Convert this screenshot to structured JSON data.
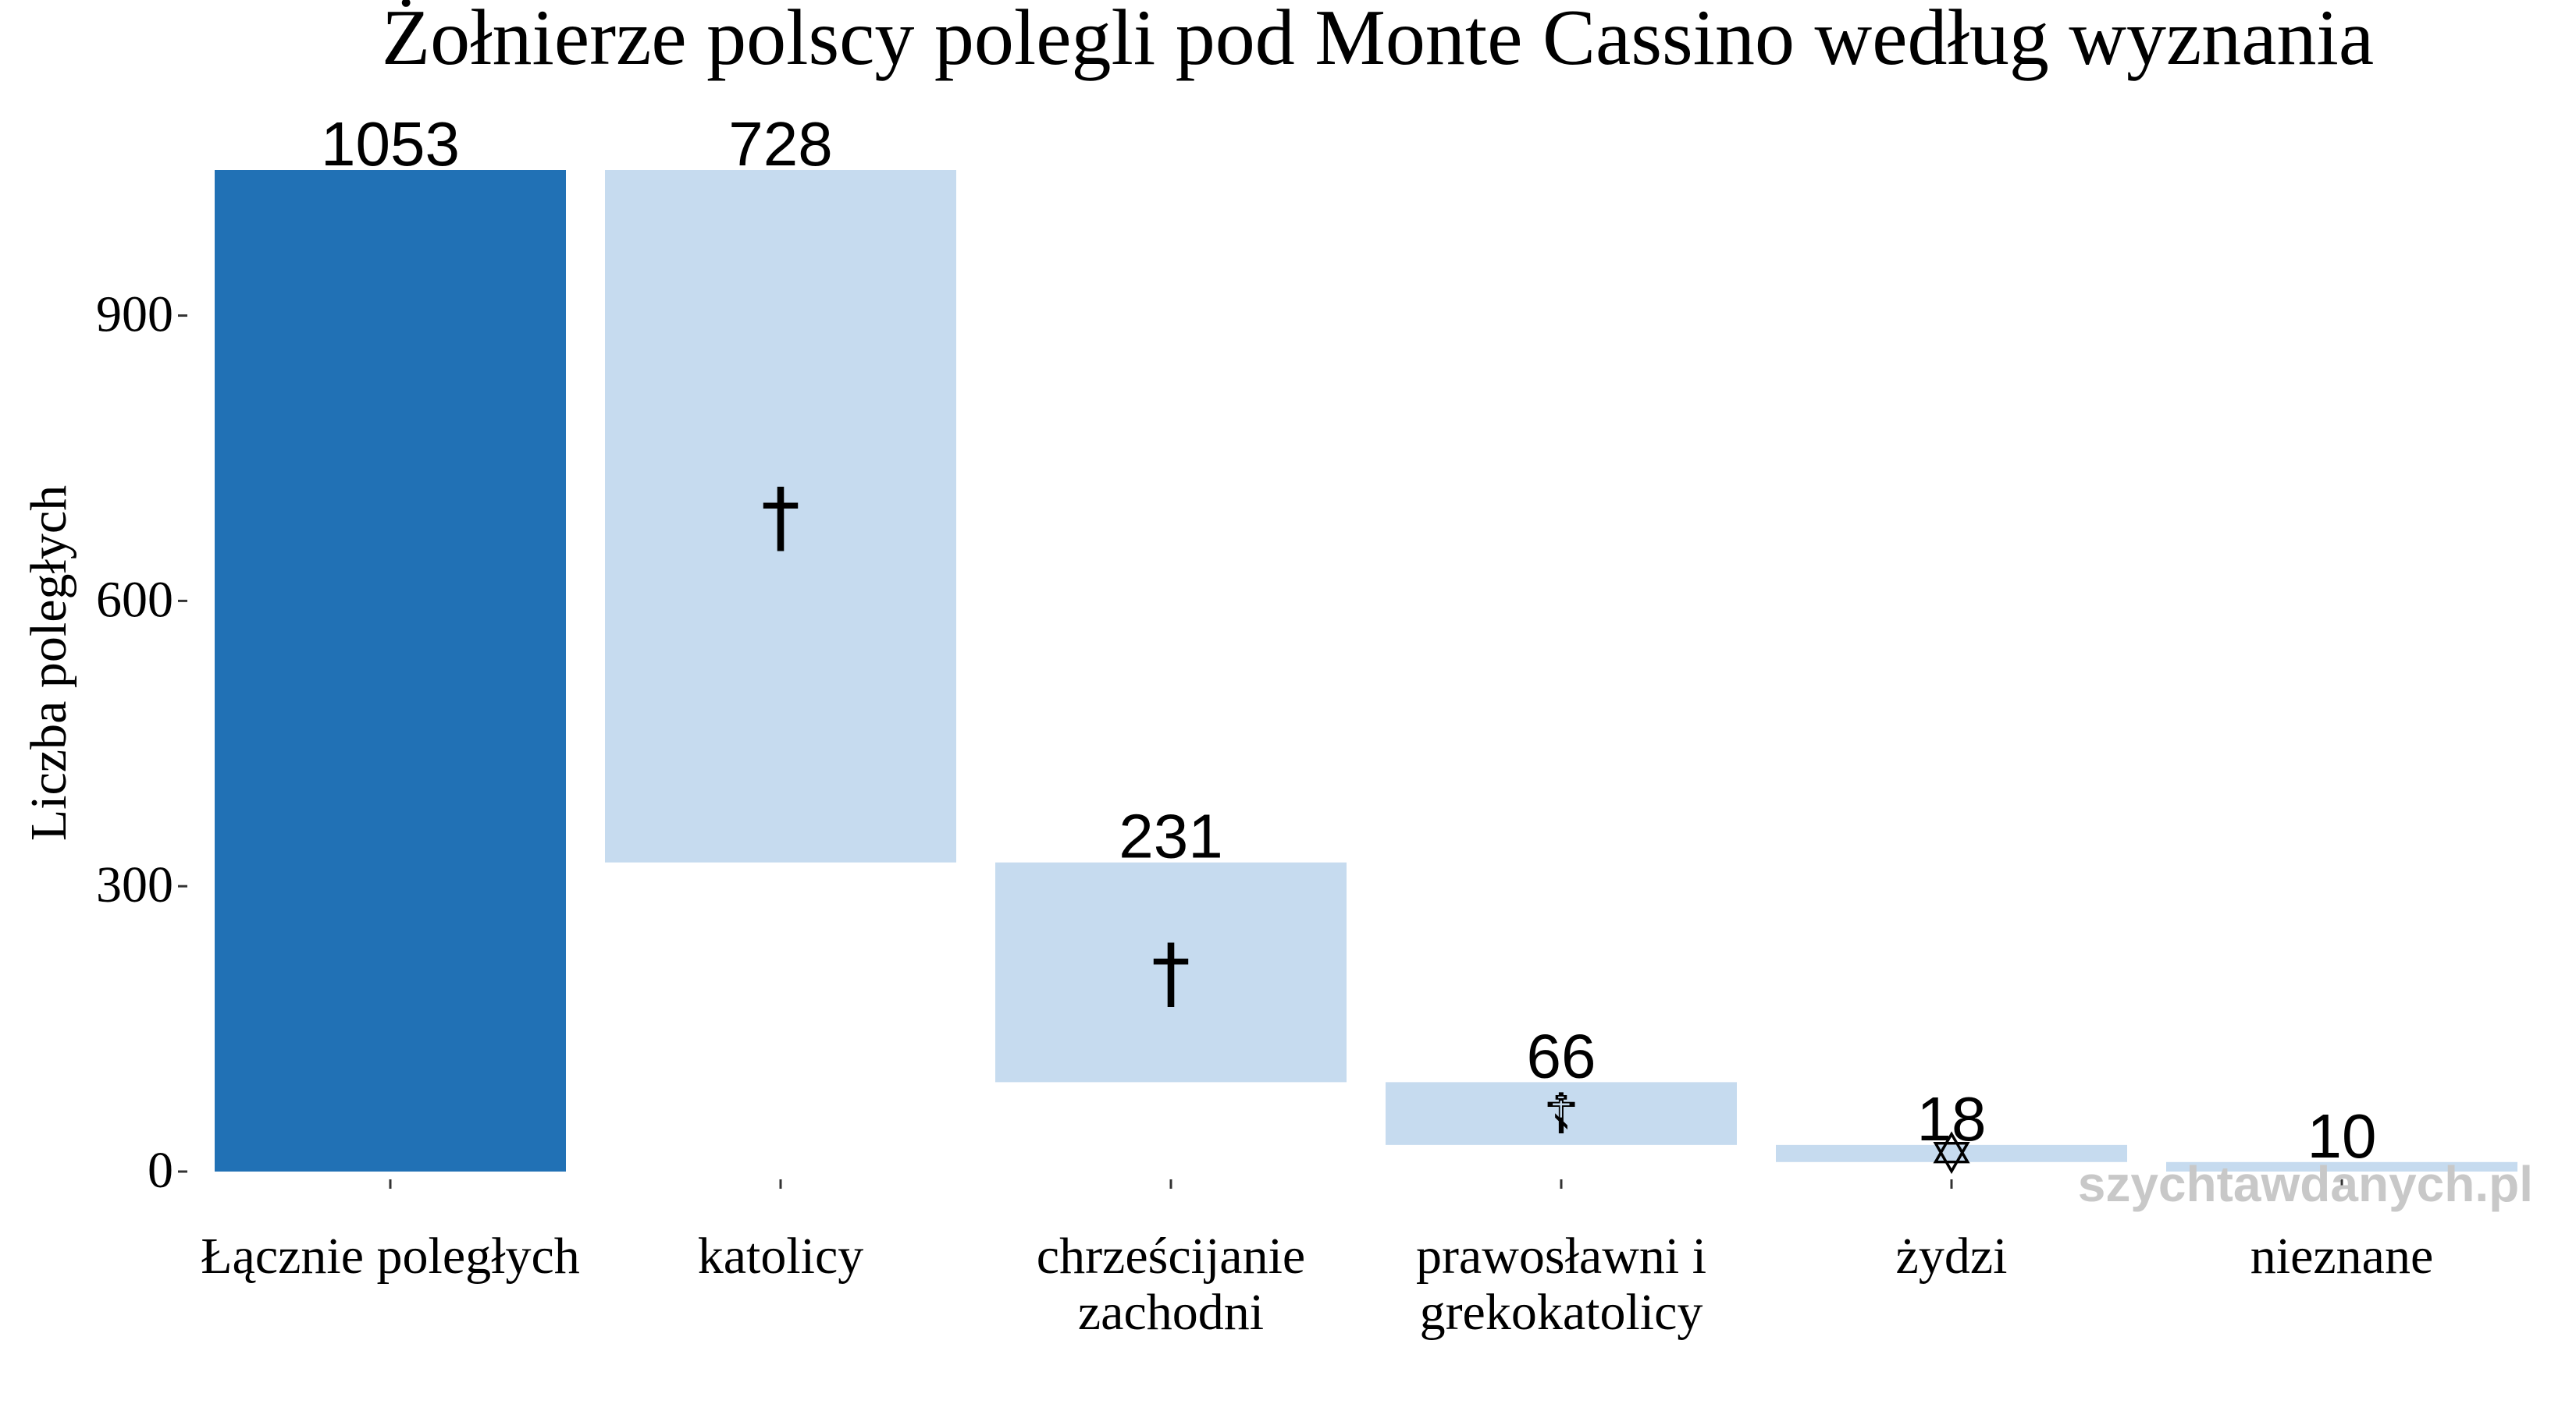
{
  "chart_data": {
    "type": "bar",
    "subtype": "waterfall",
    "title": "Żołnierze polscy polegli pod Monte Cassino według wyznania",
    "xlabel": "",
    "ylabel": "Liczba poległych",
    "ylim": [
      0,
      1053
    ],
    "yticks": [
      0,
      300,
      600,
      900
    ],
    "ytick_labels": [
      "0",
      "300",
      "600",
      "900"
    ],
    "grid": false,
    "legend": "none",
    "colors": {
      "total": "#2171b5",
      "component": "#c6dbef"
    },
    "bars": [
      {
        "category": "Łącznie poległych",
        "lines": [
          "Łącznie poległych"
        ],
        "value": 1053,
        "start": 0,
        "end": 1053,
        "kind": "total",
        "label": "1053",
        "symbol": "",
        "symbol_name": ""
      },
      {
        "category": "katolicy",
        "lines": [
          "katolicy"
        ],
        "value": 728,
        "start": 325,
        "end": 1053,
        "kind": "component",
        "label": "728",
        "symbol": "†",
        "symbol_name": "latin-cross-icon"
      },
      {
        "category": "chrześcijanie zachodni",
        "lines": [
          "chrześcijanie",
          "zachodni"
        ],
        "value": 231,
        "start": 94,
        "end": 325,
        "kind": "component",
        "label": "231",
        "symbol": "†",
        "symbol_name": "latin-cross-icon"
      },
      {
        "category": "prawosławni i grekokatolicy",
        "lines": [
          "prawosławni i",
          "grekokatolicy"
        ],
        "value": 66,
        "start": 28,
        "end": 94,
        "kind": "component",
        "label": "66",
        "symbol": "☦",
        "symbol_name": "orthodox-cross-icon"
      },
      {
        "category": "żydzi",
        "lines": [
          "żydzi"
        ],
        "value": 18,
        "start": 10,
        "end": 28,
        "kind": "component",
        "label": "18",
        "symbol": "✡",
        "symbol_name": "star-of-david-icon"
      },
      {
        "category": "nieznane",
        "lines": [
          "nieznane"
        ],
        "value": 10,
        "start": 0,
        "end": 10,
        "kind": "component",
        "label": "10",
        "symbol": "",
        "symbol_name": ""
      }
    ]
  },
  "watermark": "szychtawdanych.pl"
}
